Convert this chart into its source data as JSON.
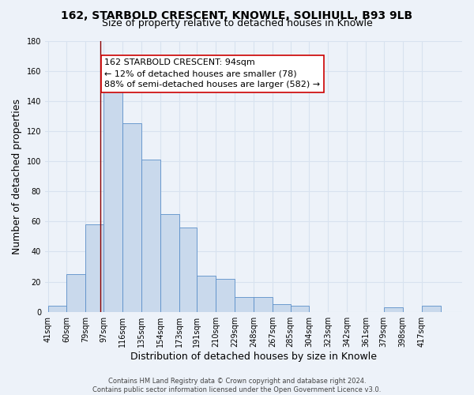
{
  "title": "162, STARBOLD CRESCENT, KNOWLE, SOLIHULL, B93 9LB",
  "subtitle": "Size of property relative to detached houses in Knowle",
  "xlabel": "Distribution of detached houses by size in Knowle",
  "ylabel": "Number of detached properties",
  "bin_labels": [
    "41sqm",
    "60sqm",
    "79sqm",
    "97sqm",
    "116sqm",
    "135sqm",
    "154sqm",
    "173sqm",
    "191sqm",
    "210sqm",
    "229sqm",
    "248sqm",
    "267sqm",
    "285sqm",
    "304sqm",
    "323sqm",
    "342sqm",
    "361sqm",
    "379sqm",
    "398sqm",
    "417sqm"
  ],
  "bar_heights": [
    4,
    25,
    58,
    149,
    125,
    101,
    65,
    56,
    24,
    22,
    10,
    10,
    5,
    4,
    0,
    0,
    0,
    0,
    3,
    0,
    4
  ],
  "bin_edges": [
    41,
    60,
    79,
    97,
    116,
    135,
    154,
    173,
    191,
    210,
    229,
    248,
    267,
    285,
    304,
    323,
    342,
    361,
    379,
    398,
    417,
    436
  ],
  "bar_color": "#c9d9ec",
  "bar_edge_color": "#5b8fc9",
  "property_line_x": 94,
  "property_line_color": "#8b0000",
  "annotation_line1": "162 STARBOLD CRESCENT: 94sqm",
  "annotation_line2": "← 12% of detached houses are smaller (78)",
  "annotation_line3": "88% of semi-detached houses are larger (582) →",
  "annotation_box_color": "#ffffff",
  "annotation_box_edge_color": "#cc0000",
  "ylim": [
    0,
    180
  ],
  "yticks": [
    0,
    20,
    40,
    60,
    80,
    100,
    120,
    140,
    160,
    180
  ],
  "footer_line1": "Contains HM Land Registry data © Crown copyright and database right 2024.",
  "footer_line2": "Contains public sector information licensed under the Open Government Licence v3.0.",
  "bg_color": "#edf2f9",
  "grid_color": "#d8e2ef",
  "title_fontsize": 10,
  "subtitle_fontsize": 9,
  "label_fontsize": 9,
  "tick_fontsize": 7,
  "annotation_fontsize": 8,
  "footer_fontsize": 6
}
